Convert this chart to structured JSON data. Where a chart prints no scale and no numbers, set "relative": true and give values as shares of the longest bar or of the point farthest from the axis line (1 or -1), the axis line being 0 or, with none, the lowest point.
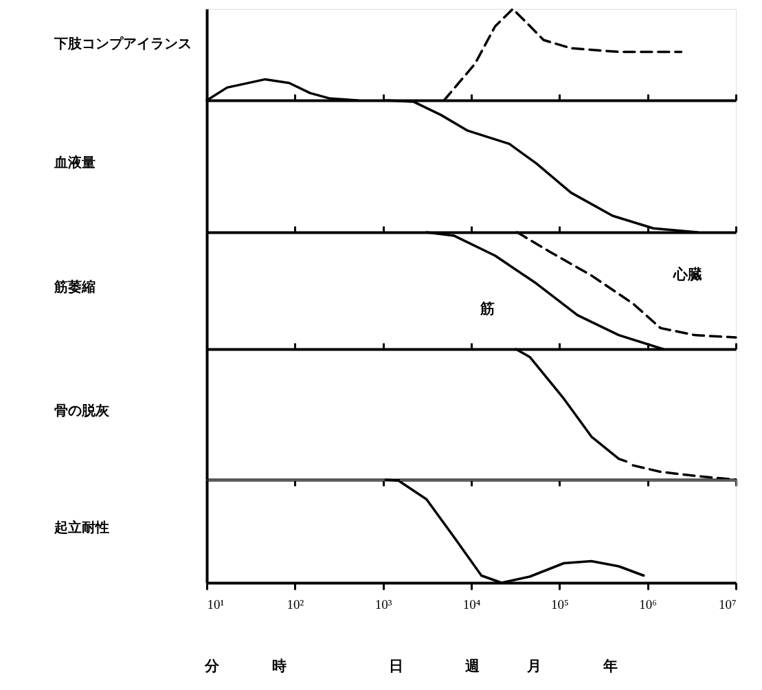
{
  "chart_data": [
    {
      "type": "line",
      "relative": true,
      "ylabel": "下肢コンプアイランス",
      "log": "x",
      "xlim": [
        10,
        10000000
      ],
      "tick_labels": false,
      "grid": false,
      "series": [
        {
          "color": "#000000",
          "line_style": "solid",
          "x": [
            10,
            17,
            46,
            86,
            148,
            250,
            515
          ],
          "values": [
            0,
            0.14,
            0.23,
            0.19,
            0.08,
            0.02,
            0
          ]
        },
        {
          "color": "#000000",
          "line_style": "dashed",
          "x": [
            4900,
            11000,
            18600,
            29500,
            38500,
            66000,
            135000,
            473000,
            2400000
          ],
          "values": [
            0,
            0.4,
            0.81,
            1,
            0.89,
            0.66,
            0.57,
            0.53,
            0.53
          ]
        }
      ]
    },
    {
      "type": "line",
      "relative": true,
      "ylabel": "血液量",
      "log": "x",
      "xlim": [
        10,
        10000000
      ],
      "tick_labels": false,
      "grid": false,
      "xticks": [
        {
          "value": 10,
          "label": null
        },
        {
          "value": 100,
          "label": null
        },
        {
          "value": 1000,
          "label": null
        },
        {
          "value": 10000,
          "label": null
        },
        {
          "value": 100000,
          "label": null
        },
        {
          "value": 1000000,
          "label": null
        },
        {
          "value": 10000000,
          "label": null
        }
      ],
      "series": [
        {
          "color": "#000000",
          "line_style": "solid",
          "x": [
            1070,
            2200,
            4500,
            9100,
            27000,
            55000,
            135000,
            400000,
            1160000,
            3700000
          ],
          "values": [
            0,
            -0.01,
            -0.11,
            -0.23,
            -0.33,
            -0.48,
            -0.7,
            -0.875,
            -0.97,
            -1
          ]
        }
      ]
    },
    {
      "type": "line",
      "relative": true,
      "ylabel": "筋萎縮",
      "log": "x",
      "xlim": [
        10,
        10000000
      ],
      "tick_labels": false,
      "grid": false,
      "xticks": [
        {
          "value": 10,
          "label": null
        },
        {
          "value": 100,
          "label": null
        },
        {
          "value": 1000,
          "label": null
        },
        {
          "value": 10000,
          "label": null
        },
        {
          "value": 100000,
          "label": null
        },
        {
          "value": 1000000,
          "label": null
        },
        {
          "value": 10000000,
          "label": null
        }
      ],
      "series": [
        {
          "color": "#000000",
          "line_style": "solid",
          "x": [
            3100,
            6400,
            18600,
            55000,
            160000,
            470000,
            1500000
          ],
          "values": [
            0,
            -0.03,
            -0.2,
            -0.44,
            -0.71,
            -0.88,
            -1
          ]
        },
        {
          "color": "#000000",
          "line_style": "dashed",
          "x": [
            33000,
            38500,
            79000,
            230000,
            680000,
            1400000,
            3400000,
            10000000
          ],
          "values": [
            0,
            -0.03,
            -0.17,
            -0.37,
            -0.61,
            -0.82,
            -0.88,
            -0.9
          ]
        }
      ],
      "annotations": [
        "心臓",
        "筋"
      ]
    },
    {
      "type": "line",
      "relative": true,
      "ylabel": "骨の脱灰",
      "log": "x",
      "xlim": [
        10,
        10000000
      ],
      "tick_labels": false,
      "grid": false,
      "xticks": [
        {
          "value": 10,
          "label": null
        },
        {
          "value": 100,
          "label": null
        },
        {
          "value": 1000,
          "label": null
        },
        {
          "value": 10000,
          "label": null
        },
        {
          "value": 100000,
          "label": null
        },
        {
          "value": 1000000,
          "label": null
        },
        {
          "value": 10000000,
          "label": null
        }
      ],
      "series": [
        {
          "color": "#000000",
          "line_style": "solid",
          "x": [
            32000,
            46000,
            112000,
            230000,
            470000,
            570000
          ],
          "values": [
            0,
            -0.06,
            -0.38,
            -0.67,
            -0.84,
            -0.86
          ]
        },
        {
          "color": "#000000",
          "line_style": "dashed",
          "x": [
            680000,
            1400000,
            3400000,
            10000000
          ],
          "values": [
            -0.89,
            -0.94,
            -0.97,
            -1
          ]
        }
      ]
    },
    {
      "type": "line",
      "relative": true,
      "ylabel": "起立耐性",
      "log": "x",
      "xlim": [
        10,
        10000000
      ],
      "tick_labels": "x",
      "grid": false,
      "xticks": [
        {
          "value": 10,
          "label": "10¹"
        },
        {
          "value": 100,
          "label": "10²"
        },
        {
          "value": 1000,
          "label": "10³"
        },
        {
          "value": 10000,
          "label": "10⁴"
        },
        {
          "value": 100000,
          "label": "10⁵"
        },
        {
          "value": 1000000,
          "label": "10⁶"
        },
        {
          "value": 10000000,
          "label": "10⁷"
        }
      ],
      "annotations": [
        "分",
        "時",
        "日",
        "週",
        "月",
        "年"
      ],
      "series": [
        {
          "color": "#000000",
          "line_style": "solid",
          "x": [
            1070,
            1500,
            3100,
            6400,
            13000,
            22000,
            46000,
            112000,
            230000,
            470000,
            900000
          ],
          "values": [
            0,
            -0.01,
            -0.19,
            -0.56,
            -0.93,
            -1,
            -0.94,
            -0.81,
            -0.79,
            -0.84,
            -0.93
          ]
        }
      ]
    }
  ]
}
